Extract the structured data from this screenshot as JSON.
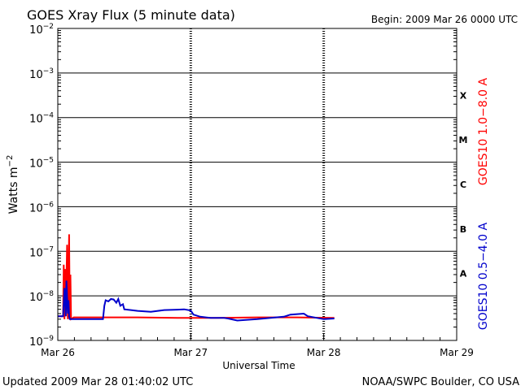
{
  "chart_data": {
    "type": "line",
    "title": "GOES Xray Flux (5 minute data)",
    "begin_label": "Begin:  2009 Mar 26 0000 UTC",
    "ylabel_main": "Watts m",
    "ylabel_sup": "−2",
    "xlabel": "Universal Time",
    "updated": "Updated 2009 Mar 28 01:40:02 UTC",
    "credit": "NOAA/SWPC Boulder, CO USA",
    "yscale": "log",
    "ylim": [
      1e-09,
      0.01
    ],
    "xlim_days": [
      0,
      3
    ],
    "grid": true,
    "x_ticks": [
      {
        "day": 0,
        "label": "Mar 26"
      },
      {
        "day": 1,
        "label": "Mar 27"
      },
      {
        "day": 2,
        "label": "Mar 28"
      },
      {
        "day": 3,
        "label": "Mar 29"
      }
    ],
    "y_ticks": [
      {
        "exp": -2,
        "base": "10",
        "sup": "−2"
      },
      {
        "exp": -3,
        "base": "10",
        "sup": "−3"
      },
      {
        "exp": -4,
        "base": "10",
        "sup": "−4"
      },
      {
        "exp": -5,
        "base": "10",
        "sup": "−5"
      },
      {
        "exp": -6,
        "base": "10",
        "sup": "−6"
      },
      {
        "exp": -7,
        "base": "10",
        "sup": "−7"
      },
      {
        "exp": -8,
        "base": "10",
        "sup": "−8"
      },
      {
        "exp": -9,
        "base": "10",
        "sup": "−9"
      }
    ],
    "flare_classes": [
      {
        "label": "X",
        "exp": -3.5
      },
      {
        "label": "M",
        "exp": -4.5
      },
      {
        "label": "C",
        "exp": -5.5
      },
      {
        "label": "B",
        "exp": -6.5
      },
      {
        "label": "A",
        "exp": -7.5
      }
    ],
    "series": [
      {
        "name": "GOES10 1.0−8.0 A",
        "color": "#ff0000",
        "points": [
          [
            0.0,
            3.5e-09
          ],
          [
            0.04,
            3.5e-09
          ],
          [
            0.045,
            5e-08
          ],
          [
            0.05,
            3e-09
          ],
          [
            0.055,
            4e-08
          ],
          [
            0.06,
            3.5e-09
          ],
          [
            0.07,
            1.4e-07
          ],
          [
            0.075,
            3e-09
          ],
          [
            0.085,
            2.4e-07
          ],
          [
            0.09,
            3e-09
          ],
          [
            0.095,
            3e-08
          ],
          [
            0.1,
            3e-09
          ],
          [
            0.12,
            3.3e-09
          ],
          [
            0.3,
            3.3e-09
          ],
          [
            0.6,
            3.3e-09
          ],
          [
            0.9,
            3.2e-09
          ],
          [
            1.2,
            3.2e-09
          ],
          [
            1.5,
            3.3e-09
          ],
          [
            1.8,
            3.3e-09
          ],
          [
            2.08,
            3.2e-09
          ]
        ]
      },
      {
        "name": "GOES10 0.5−4.0 A",
        "color": "#0000cc",
        "points": [
          [
            0.0,
            3.5e-09
          ],
          [
            0.04,
            3.5e-09
          ],
          [
            0.05,
            1.5e-08
          ],
          [
            0.06,
            3.5e-09
          ],
          [
            0.065,
            2.2e-08
          ],
          [
            0.075,
            4e-09
          ],
          [
            0.08,
            8e-09
          ],
          [
            0.085,
            3.5e-09
          ],
          [
            0.09,
            3e-09
          ],
          [
            0.1,
            3e-09
          ],
          [
            0.11,
            3e-09
          ],
          [
            0.34,
            3e-09
          ],
          [
            0.35,
            6e-09
          ],
          [
            0.36,
            8e-09
          ],
          [
            0.38,
            7.5e-09
          ],
          [
            0.4,
            8.5e-09
          ],
          [
            0.42,
            8.3e-09
          ],
          [
            0.44,
            7e-09
          ],
          [
            0.455,
            8.5e-09
          ],
          [
            0.47,
            6e-09
          ],
          [
            0.49,
            6.5e-09
          ],
          [
            0.5,
            5e-09
          ],
          [
            0.55,
            4.8e-09
          ],
          [
            0.6,
            4.6e-09
          ],
          [
            0.7,
            4.4e-09
          ],
          [
            0.8,
            4.8e-09
          ],
          [
            0.9,
            4.9e-09
          ],
          [
            0.95,
            5e-09
          ],
          [
            1.0,
            4.7e-09
          ],
          [
            1.02,
            3.8e-09
          ],
          [
            1.07,
            3.4e-09
          ],
          [
            1.15,
            3.2e-09
          ],
          [
            1.2,
            3.2e-09
          ],
          [
            1.25,
            3.2e-09
          ],
          [
            1.28,
            3.1e-09
          ],
          [
            1.35,
            2.8e-09
          ],
          [
            1.5,
            3e-09
          ],
          [
            1.6,
            3.2e-09
          ],
          [
            1.7,
            3.4e-09
          ],
          [
            1.75,
            3.8e-09
          ],
          [
            1.85,
            4e-09
          ],
          [
            1.88,
            3.5e-09
          ],
          [
            1.95,
            3.2e-09
          ],
          [
            2.0,
            3e-09
          ],
          [
            2.08,
            3.1e-09
          ]
        ]
      }
    ]
  }
}
